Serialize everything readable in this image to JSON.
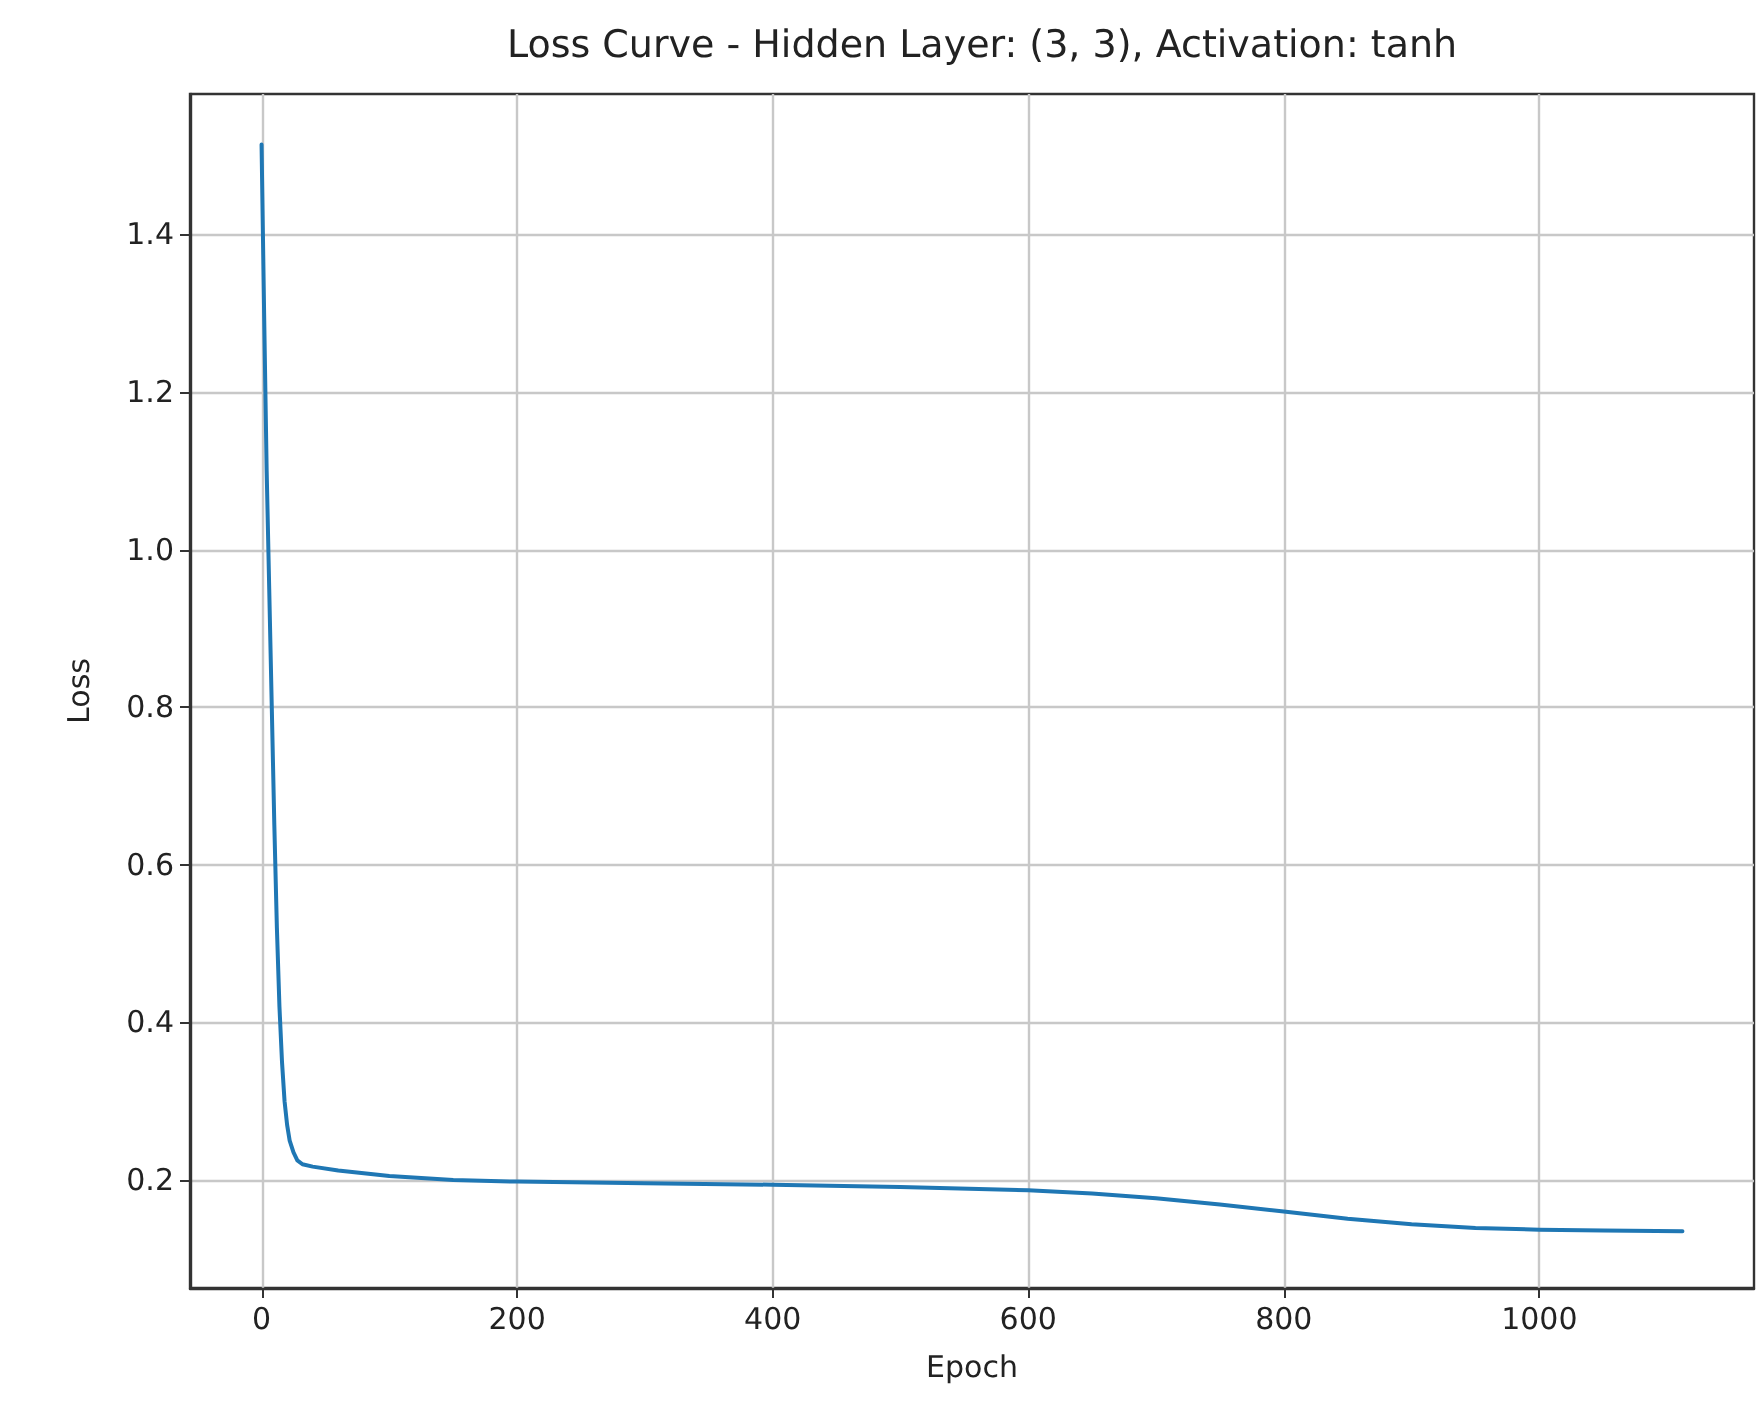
{
  "chart_data": {
    "type": "line",
    "title": "Loss Curve - Hidden Layer: (3, 3), Activation: tanh",
    "xlabel": "Epoch",
    "ylabel": "Loss",
    "series": [
      {
        "color": "#1f77b4",
        "x": [
          0,
          2,
          4,
          6,
          8,
          10,
          12,
          14,
          16,
          18,
          20,
          22,
          25,
          28,
          32,
          40,
          60,
          100,
          150,
          200,
          300,
          400,
          500,
          600,
          650,
          700,
          750,
          800,
          850,
          900,
          950,
          1000,
          1050,
          1112
        ],
        "values": [
          1.514,
          1.3,
          1.1,
          0.95,
          0.8,
          0.65,
          0.52,
          0.42,
          0.35,
          0.3,
          0.27,
          0.25,
          0.235,
          0.225,
          0.22,
          0.217,
          0.212,
          0.205,
          0.2,
          0.198,
          0.196,
          0.194,
          0.191,
          0.187,
          0.183,
          0.177,
          0.169,
          0.16,
          0.151,
          0.144,
          0.139,
          0.137,
          0.136,
          0.135
        ]
      }
    ],
    "xlim": [
      -56,
      1168
    ],
    "xticks": [
      0,
      200,
      400,
      600,
      800,
      1000
    ],
    "ylim": [
      0.063,
      1.578
    ],
    "yticks": [
      {
        "value": 0.2,
        "label": "0.2"
      },
      {
        "value": 0.4,
        "label": "0.4"
      },
      {
        "value": 0.6,
        "label": "0.6"
      },
      {
        "value": 0.8,
        "label": "0.8"
      },
      {
        "value": 1,
        "label": "1.0"
      },
      {
        "value": 1.2,
        "label": "1.2"
      },
      {
        "value": 1.4,
        "label": "1.4"
      }
    ],
    "grid": true,
    "marker": "none",
    "line_style": "solid"
  }
}
